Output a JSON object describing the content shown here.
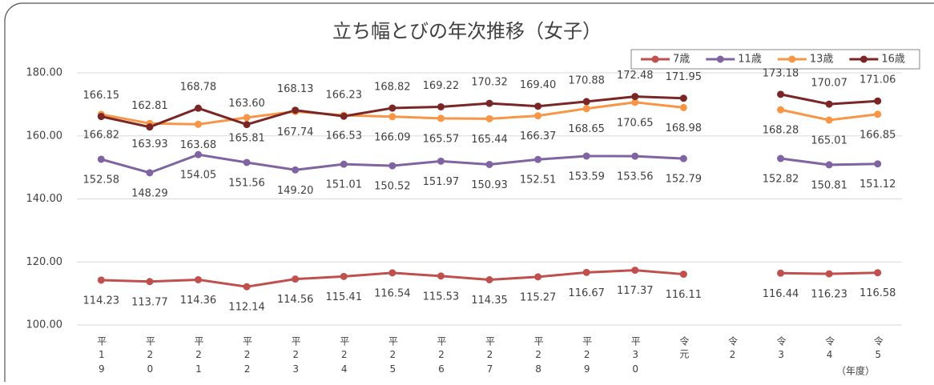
{
  "chart_data": {
    "type": "line",
    "title": "立ち幅とびの年次推移（女子）",
    "x_unit": "（年度）",
    "categories": [
      "平19",
      "平20",
      "平21",
      "平22",
      "平23",
      "平24",
      "平25",
      "平26",
      "平27",
      "平28",
      "平29",
      "平30",
      "令元",
      "令2",
      "令3",
      "令4",
      "令5"
    ],
    "series": [
      {
        "name": "7歳",
        "color": "#c0504d",
        "label_pos": "below",
        "values": [
          114.23,
          113.77,
          114.36,
          112.14,
          114.56,
          115.41,
          116.54,
          115.53,
          114.35,
          115.27,
          116.67,
          117.37,
          116.11,
          null,
          116.44,
          116.23,
          116.58
        ],
        "value_labels": [
          "114.23",
          "113.77",
          "114.36",
          "112.14",
          "114.56",
          "115.41",
          "116.54",
          "115.53",
          "114.35",
          "115.27",
          "116.67",
          "117.37",
          "116.11",
          null,
          "116.44",
          "116.23",
          "116.58"
        ]
      },
      {
        "name": "11歳",
        "color": "#8064a2",
        "label_pos": "below",
        "values": [
          152.58,
          148.29,
          154.05,
          151.56,
          149.2,
          151.01,
          150.52,
          151.97,
          150.93,
          152.51,
          153.59,
          153.56,
          152.79,
          null,
          152.82,
          150.81,
          151.12
        ],
        "value_labels": [
          "152.58",
          "148.29",
          "154.05",
          "151.56",
          "149.20",
          "151.01",
          "150.52",
          "151.97",
          "150.93",
          "152.51",
          "153.59",
          "153.56",
          "152.79",
          null,
          "152.82",
          "150.81",
          "151.12"
        ]
      },
      {
        "name": "13歳",
        "color": "#f79646",
        "label_pos": "below",
        "values": [
          166.82,
          163.93,
          163.68,
          165.81,
          167.74,
          166.53,
          166.09,
          165.57,
          165.44,
          166.37,
          168.65,
          170.65,
          168.98,
          null,
          168.28,
          165.01,
          166.85
        ],
        "value_labels": [
          "166.82",
          "163.93",
          "163.68",
          "165.81",
          "167.74",
          "166.53",
          "166.09",
          "165.57",
          "165.44",
          "166.37",
          "168.65",
          "170.65",
          "168.98",
          null,
          "168.28",
          "165.01",
          "166.85"
        ]
      },
      {
        "name": "16歳",
        "color": "#7b2626",
        "label_pos": "above",
        "values": [
          166.15,
          162.81,
          168.78,
          163.6,
          168.13,
          166.23,
          168.82,
          169.22,
          170.32,
          169.4,
          170.88,
          172.48,
          171.95,
          null,
          173.18,
          170.07,
          171.06
        ],
        "value_labels": [
          "166.15",
          "162.81",
          "168.78",
          "163.60",
          "168.13",
          "166.23",
          "168.82",
          "169.22",
          "170.32",
          "169.40",
          "170.88",
          "172.48",
          "171.95",
          null,
          "173.18",
          "170.07",
          "171.06"
        ]
      }
    ],
    "ylim": [
      100,
      180
    ],
    "yticks": [
      {
        "value": 100,
        "label": "100.00"
      },
      {
        "value": 120,
        "label": "120.00"
      },
      {
        "value": 140,
        "label": "140.00"
      },
      {
        "value": 160,
        "label": "160.00"
      },
      {
        "value": 180,
        "label": "180.00"
      }
    ],
    "grid": true,
    "legend": "top-right"
  }
}
